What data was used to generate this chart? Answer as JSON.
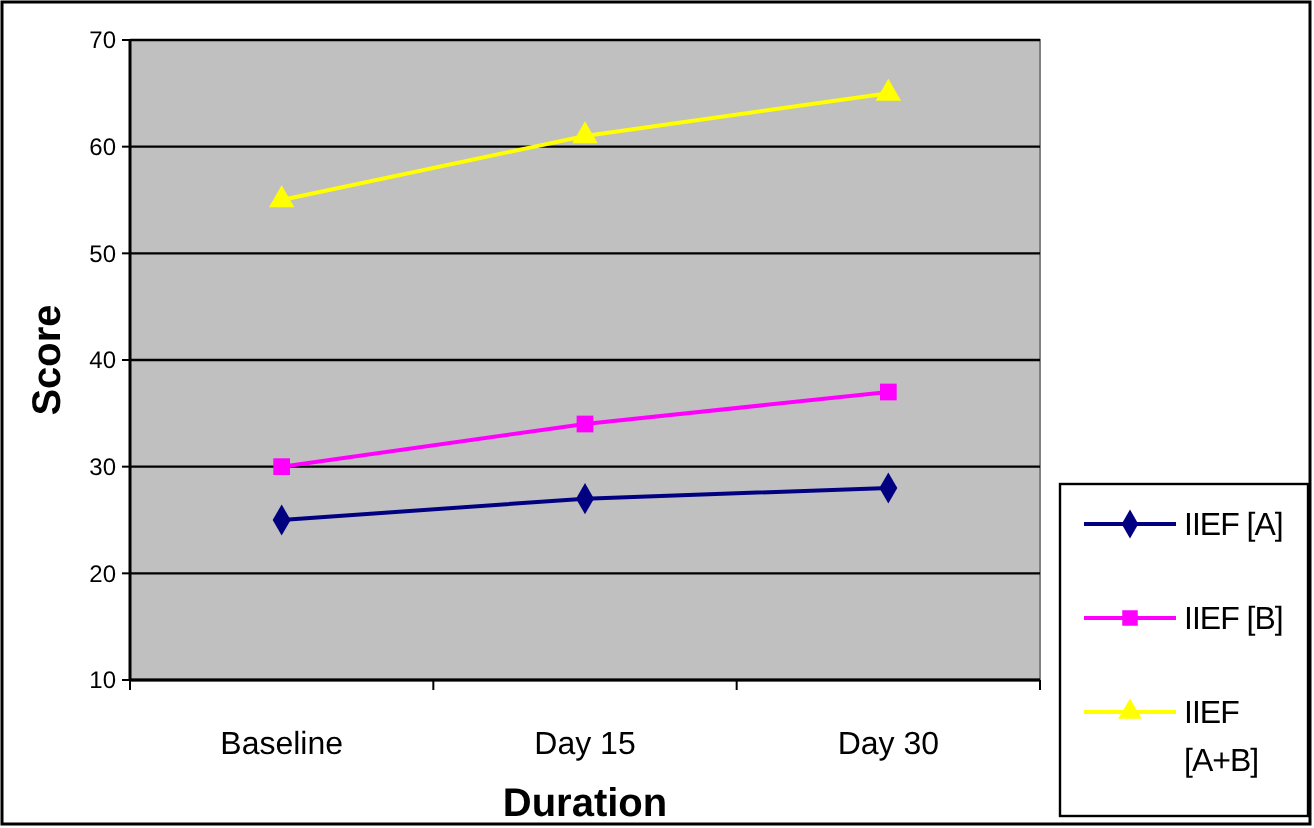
{
  "chart_data": {
    "type": "line",
    "xlabel": "Duration",
    "ylabel": "Score",
    "categories": [
      "Baseline",
      "Day 15",
      "Day 30"
    ],
    "ylim": [
      10,
      70
    ],
    "yticks": [
      10,
      20,
      30,
      40,
      50,
      60,
      70
    ],
    "grid": "y",
    "legend": "right",
    "series": [
      {
        "name": "IIEF [A]",
        "color": "#000080",
        "marker": "diamond",
        "values": [
          25,
          27,
          28
        ]
      },
      {
        "name": "IIEF [B]",
        "color": "#ff00ff",
        "marker": "square",
        "values": [
          30,
          34,
          37
        ]
      },
      {
        "name": "IIEF [A+B]",
        "color": "#ffff00",
        "marker": "triangle",
        "values": [
          55,
          61,
          65
        ]
      }
    ]
  }
}
